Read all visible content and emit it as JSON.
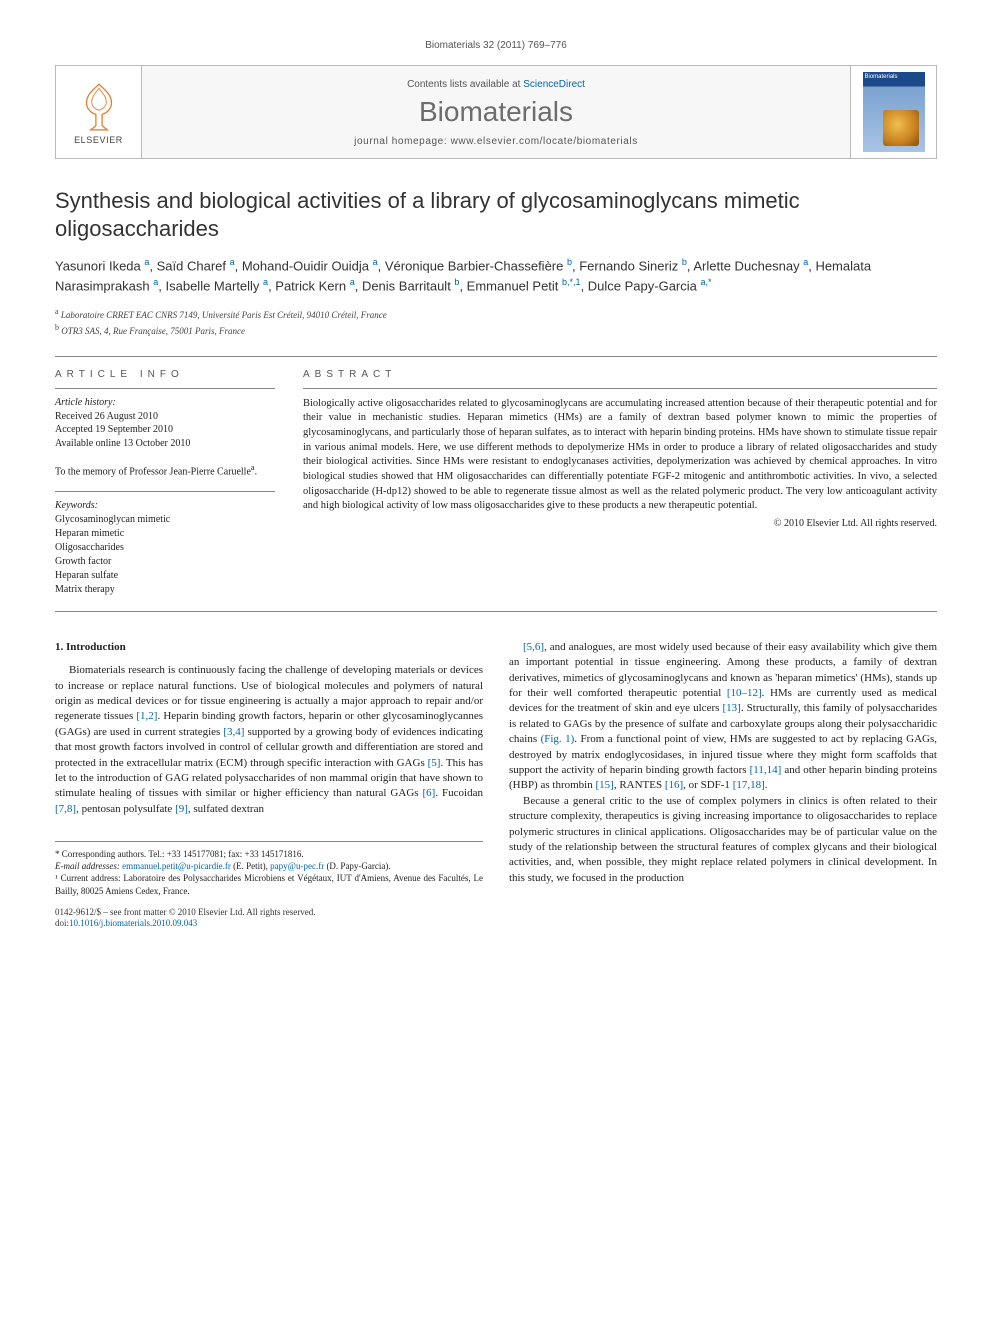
{
  "running_head": "Biomaterials 32 (2011) 769–776",
  "masthead": {
    "publisher_name": "ELSEVIER",
    "contents_prefix": "Contents lists available at ",
    "contents_link": "ScienceDirect",
    "journal_name": "Biomaterials",
    "homepage_prefix": "journal homepage: ",
    "homepage_url": "www.elsevier.com/locate/biomaterials",
    "cover_title": "Biomaterials"
  },
  "title": "Synthesis and biological activities of a library of glycosaminoglycans mimetic oligosaccharides",
  "authors_html": "Yasunori Ikeda <sup>a</sup>, Saïd Charef <sup>a</sup>, Mohand-Ouidir Ouidja <sup>a</sup>, Véronique Barbier-Chassefière <sup>b</sup>, Fernando Sineriz <sup>b</sup>, Arlette Duchesnay <sup>a</sup>, Hemalata Narasimprakash <sup>a</sup>, Isabelle Martelly <sup>a</sup>, Patrick Kern <sup>a</sup>, Denis Barritault <sup>b</sup>, Emmanuel Petit <sup>b,*,1</sup>, Dulce Papy-Garcia <sup>a,*</sup>",
  "affiliations": [
    {
      "mark": "a",
      "text": "Laboratoire CRRET EAC CNRS 7149, Université Paris Est Créteil, 94010 Créteil, France"
    },
    {
      "mark": "b",
      "text": "OTR3 SAS, 4, Rue Française, 75001 Paris, France"
    }
  ],
  "info": {
    "label": "ARTICLE INFO",
    "history_label": "Article history:",
    "history": [
      "Received 26 August 2010",
      "Accepted 19 September 2010",
      "Available online 13 October 2010"
    ],
    "dedication": "To the memory of Professor Jean-Pierre Caruelle<sup>a</sup>.",
    "keywords_label": "Keywords:",
    "keywords": [
      "Glycosaminoglycan mimetic",
      "Heparan mimetic",
      "Oligosaccharides",
      "Growth factor",
      "Heparan sulfate",
      "Matrix therapy"
    ]
  },
  "abstract": {
    "label": "ABSTRACT",
    "text": "Biologically active oligosaccharides related to glycosaminoglycans are accumulating increased attention because of their therapeutic potential and for their value in mechanistic studies. Heparan mimetics (HMs) are a family of dextran based polymer known to mimic the properties of glycosaminoglycans, and particularly those of heparan sulfates, as to interact with heparin binding proteins. HMs have shown to stimulate tissue repair in various animal models. Here, we use different methods to depolymerize HMs in order to produce a library of related oligosaccharides and study their biological activities. Since HMs were resistant to endoglycanases activities, depolymerization was achieved by chemical approaches. In vitro biological studies showed that HM oligosaccharides can differentially potentiate FGF-2 mitogenic and antithrombotic activities. In vivo, a selected oligosaccharide (H-dp12) showed to be able to regenerate tissue almost as well as the related polymeric product. The very low anticoagulant activity and high biological activity of low mass oligosaccharides give to these products a new therapeutic potential.",
    "copyright": "© 2010 Elsevier Ltd. All rights reserved."
  },
  "body": {
    "section_heading": "1. Introduction",
    "p1": "Biomaterials research is continuously facing the challenge of developing materials or devices to increase or replace natural functions. Use of biological molecules and polymers of natural origin as medical devices or for tissue engineering is actually a major approach to repair and/or regenerate tissues [1,2]. Heparin binding growth factors, heparin or other glycosaminoglycannes (GAGs) are used in current strategies [3,4] supported by a growing body of evidences indicating that most growth factors involved in control of cellular growth and differentiation are stored and protected in the extracellular matrix (ECM) through specific interaction with GAGs [5]. This has let to the introduction of GAG related polysaccharides of non mammal origin that have shown to stimulate healing of tissues with similar or higher efficiency than natural GAGs [6]. Fucoidan [7,8], pentosan polysulfate [9], sulfated dextran",
    "p2": "[5,6], and analogues, are most widely used because of their easy availability which give them an important potential in tissue engineering. Among these products, a family of dextran derivatives, mimetics of glycosaminoglycans and known as 'heparan mimetics' (HMs), stands up for their well comforted therapeutic potential [10–12]. HMs are currently used as medical devices for the treatment of skin and eye ulcers [13]. Structurally, this family of polysaccharides is related to GAGs by the presence of sulfate and carboxylate groups along their polysaccharidic chains (Fig. 1). From a functional point of view, HMs are suggested to act by replacing GAGs, destroyed by matrix endoglycosidases, in injured tissue where they might form scaffolds that support the activity of heparin binding growth factors [11,14] and other heparin binding proteins (HBP) as thrombin [15], RANTES [16], or SDF-1 [17,18].",
    "p3": "Because a general critic to the use of complex polymers in clinics is often related to their structure complexity, therapeutics is giving increasing importance to oligosaccharides to replace polymeric structures in clinical applications. Oligosaccharides may be of particular value on the study of the relationship between the structural features of complex glycans and their biological activities, and, when possible, they might replace related polymers in clinical development. In this study, we focused in the production"
  },
  "footnotes": {
    "corr": "* Corresponding authors. Tel.: +33 145177081; fax: +33 145171816.",
    "email_label": "E-mail addresses:",
    "email1": "emmanuel.petit@u-picardie.fr",
    "email1_who": " (E. Petit), ",
    "email2": "papy@u-pec.fr",
    "email2_who": "(D. Papy-Garcia).",
    "addr1": "¹ Current address: Laboratoire des Polysaccharides Microbiens et Végétaux, IUT d'Amiens, Avenue des Facultés, Le Bailly, 80025 Amiens Cedex, France."
  },
  "bottom": {
    "line1": "0142-9612/$ – see front matter © 2010 Elsevier Ltd. All rights reserved.",
    "doi_prefix": "doi:",
    "doi": "10.1016/j.biomaterials.2010.09.043"
  },
  "colors": {
    "link": "#0066aa",
    "text": "#222222",
    "muted": "#555555",
    "rule": "#888888",
    "brand_grey": "#6d6d6d"
  }
}
